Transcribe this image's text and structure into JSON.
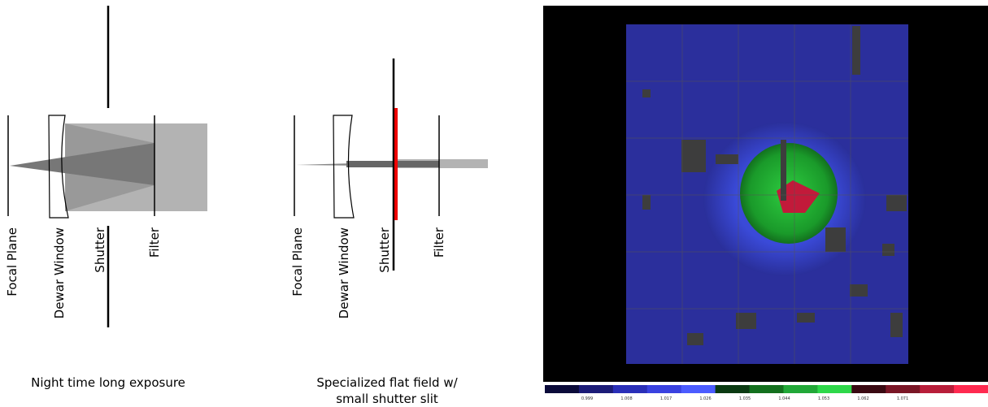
{
  "panels": [
    {
      "labels": [
        "Focal Plane",
        "Dewar Window",
        "Shutter",
        "Filter"
      ],
      "caption": [
        "Night time long exposure"
      ]
    },
    {
      "labels": [
        "Focal Plane",
        "Dewar Window",
        "Shutter",
        "Filter"
      ],
      "caption": [
        "Specialized flat field w/",
        "small shutter slit"
      ]
    }
  ],
  "colorbar": {
    "ticks": [
      0.999,
      1.008,
      1.017,
      1.026,
      1.035,
      1.044,
      1.053,
      1.062,
      1.071
    ]
  }
}
